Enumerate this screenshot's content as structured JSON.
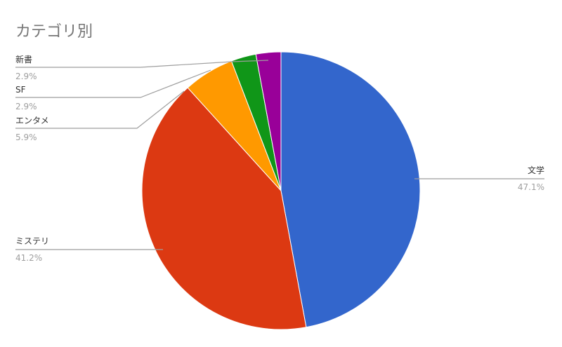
{
  "chart_data": {
    "type": "pie",
    "title": "カテゴリ別",
    "categories": [
      "文学",
      "ミステリ",
      "エンタメ",
      "SF",
      "新書"
    ],
    "values": [
      47.1,
      41.2,
      5.9,
      2.9,
      2.9
    ],
    "percent_labels": [
      "47.1%",
      "41.2%",
      "5.9%",
      "2.9%",
      "2.9%"
    ],
    "colors": [
      "#3366cc",
      "#dc3912",
      "#ff9900",
      "#109618",
      "#990099"
    ],
    "start": "top",
    "direction": "clockwise",
    "legend": "labeled leader lines"
  }
}
